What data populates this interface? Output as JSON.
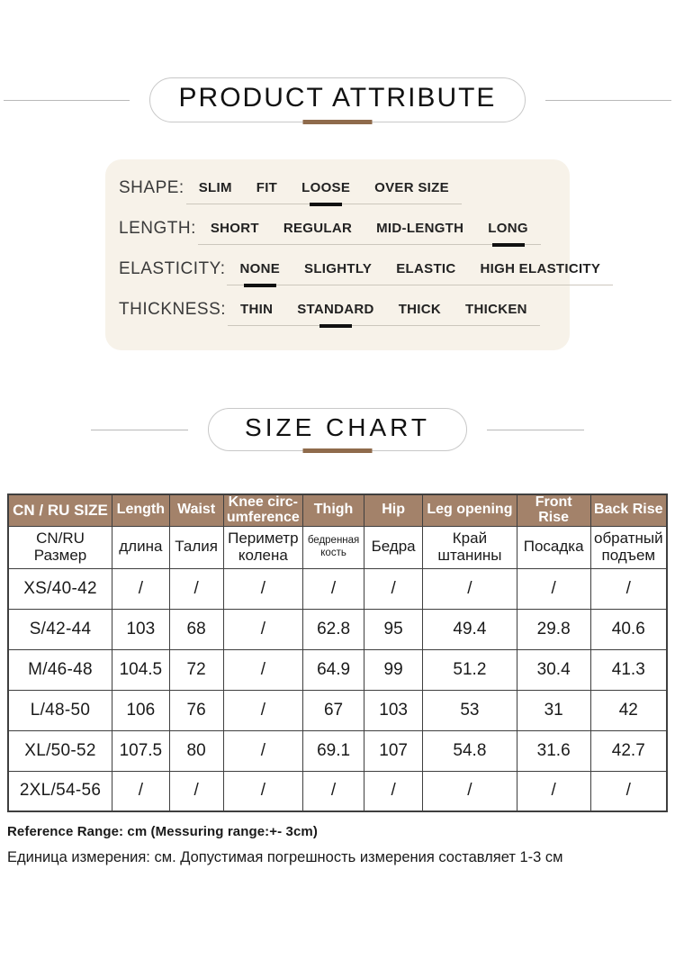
{
  "sections": {
    "product_attribute": {
      "title": "PRODUCT ATTRIBUTE"
    },
    "size_chart": {
      "title": "SIZE CHART"
    }
  },
  "attributes": [
    {
      "label": "SHAPE:",
      "options": [
        "SLIM",
        "FIT",
        "LOOSE",
        "OVER SIZE"
      ],
      "selected": "LOOSE"
    },
    {
      "label": "LENGTH:",
      "options": [
        "SHORT",
        "REGULAR",
        "MID-LENGTH",
        "LONG"
      ],
      "selected": "LONG"
    },
    {
      "label": "ELASTICITY:",
      "options": [
        "NONE",
        "SLIGHTLY",
        "ELASTIC",
        "HIGH ELASTICITY"
      ],
      "selected": "NONE"
    },
    {
      "label": "THICKNESS:",
      "options": [
        "THIN",
        "STANDARD",
        "THICK",
        "THICKEN"
      ],
      "selected": "STANDARD"
    }
  ],
  "size_table": {
    "columns_en": [
      "CN / RU SIZE",
      "Length",
      "Waist",
      "Knee circ-umference",
      "Thigh",
      "Hip",
      "Leg opening",
      "Front Rise",
      "Back Rise"
    ],
    "columns_ru": [
      "CN/RU Размер",
      "длина",
      "Талия",
      "Периметр колена",
      "бедренная кость",
      "Бедра",
      "Край штанины",
      "Посадка",
      "обратный подъем"
    ],
    "rows": [
      [
        "XS/40-42",
        "/",
        "/",
        "/",
        "/",
        "/",
        "/",
        "/",
        "/"
      ],
      [
        "S/42-44",
        "103",
        "68",
        "/",
        "62.8",
        "95",
        "49.4",
        "29.8",
        "40.6"
      ],
      [
        "M/46-48",
        "104.5",
        "72",
        "/",
        "64.9",
        "99",
        "51.2",
        "30.4",
        "41.3"
      ],
      [
        "L/48-50",
        "106",
        "76",
        "/",
        "67",
        "103",
        "53",
        "31",
        "42"
      ],
      [
        "XL/50-52",
        "107.5",
        "80",
        "/",
        "69.1",
        "107",
        "54.8",
        "31.6",
        "42.7"
      ],
      [
        "2XL/54-56",
        "/",
        "/",
        "/",
        "/",
        "/",
        "/",
        "/",
        "/"
      ]
    ]
  },
  "notes": {
    "reference_en": "Reference Range: cm (Messuring range:+- 3cm)",
    "reference_ru": "Единица измерения: см. Допустимая погрешность измерения составляет 1-3 см"
  },
  "colors": {
    "table_header_brown": "#a3826a",
    "accent_bar_brown": "#8f6b4c",
    "attribute_box_cream": "#f7f2e9"
  }
}
